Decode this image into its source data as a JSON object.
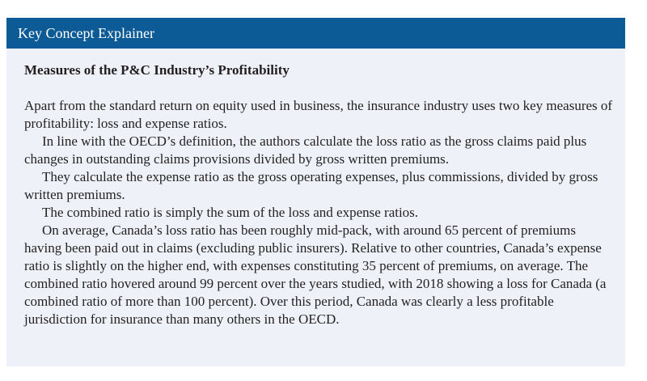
{
  "header": {
    "title": "Key Concept Explainer"
  },
  "body": {
    "heading": "Measures of the P&C Industry’s Profitability",
    "paragraphs": [
      "Apart from the standard return on equity used in business, the insurance industry uses two key measures of profitability: loss and expense ratios.",
      "In line with the OECD’s definition, the authors calculate the loss ratio as the gross claims paid plus changes in outstanding claims provisions divided by gross written premiums.",
      "They calculate the expense ratio as the gross operating expenses, plus commissions, divided by gross written premiums.",
      "The combined ratio is simply the sum of the loss and expense ratios.",
      "On average, Canada’s loss ratio has been roughly mid-pack, with around 65 percent of premiums having been paid out in claims (excluding public insurers). Relative to other countries, Canada’s expense ratio is slightly on the higher end, with expenses constituting 35 percent of premiums, on average. The combined ratio hovered around 99 percent over the years studied, with 2018 showing a loss for Canada (a combined ratio of more than 100 percent). Over this period, Canada was clearly a less profitable jurisdiction for insurance than many others in the OECD."
    ]
  }
}
